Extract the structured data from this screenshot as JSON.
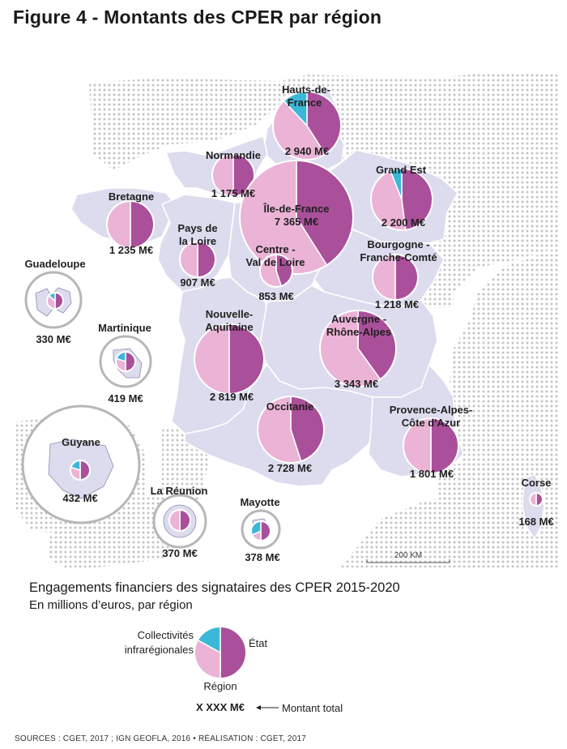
{
  "title": "Figure 4 - Montants des CPER par région",
  "colors": {
    "etat": "#aa4f9a",
    "region": "#ebb3d6",
    "collectivites": "#3bb8d8",
    "land": "#dcdcee",
    "land_stroke": "#ffffff",
    "dots": "#c6c6c6"
  },
  "regions": [
    {
      "id": "hauts-de-france",
      "name": [
        "Hauts-de-",
        "France"
      ],
      "value": "2 940 M€",
      "shares": {
        "etat": 0.41,
        "region": 0.47,
        "collectivites": 0.12
      }
    },
    {
      "id": "normandie",
      "name": [
        "Normandie"
      ],
      "value": "1 175 M€",
      "shares": {
        "etat": 0.5,
        "region": 0.5,
        "collectivites": 0
      }
    },
    {
      "id": "ile-de-france",
      "name": [
        "Île-de-France"
      ],
      "value": "7 365 M€",
      "shares": {
        "etat": 0.41,
        "region": 0.59,
        "collectivites": 0
      }
    },
    {
      "id": "grand-est",
      "name": [
        "Grand Est"
      ],
      "value": "2 200 M€",
      "shares": {
        "etat": 0.48,
        "region": 0.46,
        "collectivites": 0.06
      }
    },
    {
      "id": "bretagne",
      "name": [
        "Bretagne"
      ],
      "value": "1 235 M€",
      "shares": {
        "etat": 0.5,
        "region": 0.5,
        "collectivites": 0
      }
    },
    {
      "id": "pays-de-la-loire",
      "name": [
        "Pays de",
        "la Loire"
      ],
      "value": "907 M€",
      "shares": {
        "etat": 0.5,
        "region": 0.5,
        "collectivites": 0
      }
    },
    {
      "id": "centre-val-de-loire",
      "name": [
        "Centre -",
        "Val de Loire"
      ],
      "value": "853 M€",
      "shares": {
        "etat": 0.45,
        "region": 0.55,
        "collectivites": 0
      }
    },
    {
      "id": "bourgogne-franche-comte",
      "name": [
        "Bourgogne -",
        "Franche-Comté"
      ],
      "value": "1 218 M€",
      "shares": {
        "etat": 0.5,
        "region": 0.5,
        "collectivites": 0
      }
    },
    {
      "id": "nouvelle-aquitaine",
      "name": [
        "Nouvelle-",
        "Aquitaine"
      ],
      "value": "2 819 M€",
      "shares": {
        "etat": 0.5,
        "region": 0.5,
        "collectivites": 0
      }
    },
    {
      "id": "auvergne-rhone-alpes",
      "name": [
        "Auvergne -",
        "Rhône-Alpes"
      ],
      "value": "3 343 M€",
      "shares": {
        "etat": 0.4,
        "region": 0.6,
        "collectivites": 0
      }
    },
    {
      "id": "occitanie",
      "name": [
        "Occitanie"
      ],
      "value": "2 728 M€",
      "shares": {
        "etat": 0.45,
        "region": 0.55,
        "collectivites": 0
      }
    },
    {
      "id": "provence-alpes-cote-dazur",
      "name": [
        "Provence-Alpes-",
        "Côte d'Azur"
      ],
      "value": "1 801 M€",
      "shares": {
        "etat": 0.5,
        "region": 0.5,
        "collectivites": 0
      }
    },
    {
      "id": "corse",
      "name": [
        "Corse"
      ],
      "value": "168 M€",
      "shares": {
        "etat": 0.5,
        "region": 0.5,
        "collectivites": 0
      }
    },
    {
      "id": "guadeloupe",
      "name": [
        "Guadeloupe"
      ],
      "value": "330 M€",
      "shares": {
        "etat": 0.5,
        "region": 0.36,
        "collectivites": 0.14
      }
    },
    {
      "id": "martinique",
      "name": [
        "Martinique"
      ],
      "value": "419 M€",
      "shares": {
        "etat": 0.5,
        "region": 0.3,
        "collectivites": 0.2
      }
    },
    {
      "id": "guyane",
      "name": [
        "Guyane"
      ],
      "value": "432 M€",
      "shares": {
        "etat": 0.5,
        "region": 0.3,
        "collectivites": 0.2
      }
    },
    {
      "id": "la-reunion",
      "name": [
        "La Réunion"
      ],
      "value": "370 M€",
      "shares": {
        "etat": 0.5,
        "region": 0.5,
        "collectivites": 0
      }
    },
    {
      "id": "mayotte",
      "name": [
        "Mayotte"
      ],
      "value": "378 M€",
      "shares": {
        "etat": 0.5,
        "region": 0.18,
        "collectivites": 0.32
      }
    }
  ],
  "scale_label": "200 KM",
  "legend": {
    "title": "Engagements financiers des signataires des CPER 2015-2020",
    "subtitle": "En millions d’euros, par région",
    "collectivites": [
      "Collectivités",
      "infrarégionales"
    ],
    "etat": "État",
    "region": "Région",
    "total_sample": "X XXX M€",
    "total_label": "Montant total"
  },
  "sources": "SOURCES : CGET, 2017 ; IGN GEOFLA, 2016 • RÉALISATION : CGET, 2017"
}
